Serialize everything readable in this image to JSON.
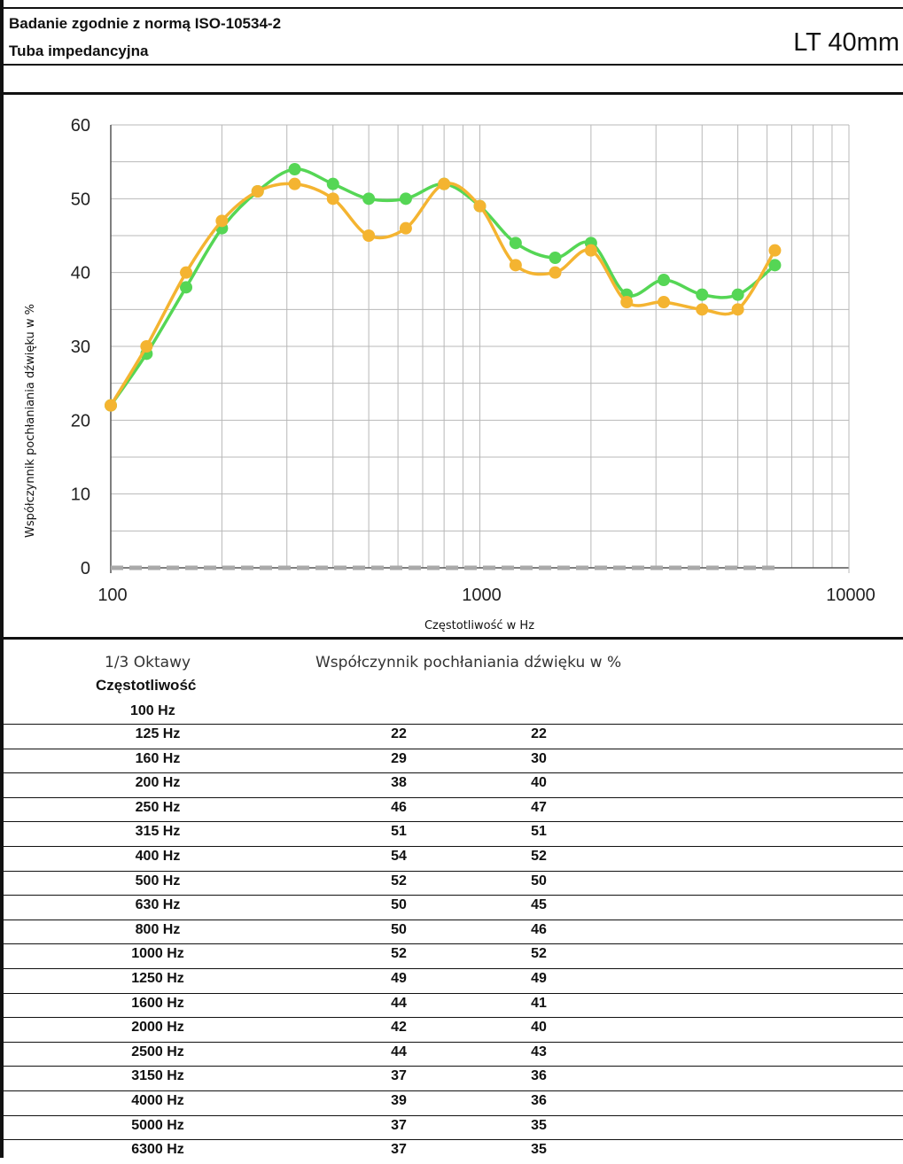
{
  "header": {
    "title_line_1": "Badanie zgodnie z normą ISO-10534-2",
    "title_line_2": "Tuba impedancyjna",
    "product": "LT 40mm"
  },
  "chart_data": {
    "type": "line",
    "xscale": "log",
    "xlabel": "Częstotliwość w Hz",
    "ylabel": "Współczynnik pochłaniania dźwięku w %",
    "xlim": [
      100,
      10000
    ],
    "ylim": [
      0,
      60
    ],
    "x_ticks": [
      "100",
      "1000",
      "10000"
    ],
    "y_ticks": [
      "0",
      "10",
      "20",
      "30",
      "40",
      "50",
      "60"
    ],
    "grid": true,
    "legend": "none",
    "x": [
      100,
      125,
      160,
      200,
      250,
      315,
      400,
      500,
      630,
      800,
      1000,
      1250,
      1600,
      2000,
      2500,
      3150,
      4000,
      5000,
      6300
    ],
    "series": [
      {
        "color": "#55d655",
        "values": [
          22,
          29,
          38,
          46,
          51,
          54,
          52,
          50,
          50,
          52,
          49,
          44,
          42,
          44,
          37,
          39,
          37,
          37,
          41
        ]
      },
      {
        "color": "#f4b431",
        "values": [
          22,
          30,
          40,
          47,
          51,
          52,
          50,
          45,
          46,
          52,
          49,
          41,
          40,
          43,
          36,
          36,
          35,
          35,
          43
        ]
      },
      {
        "color": "#a9a9a9",
        "style": "dashed",
        "values": [
          0,
          0,
          0,
          0,
          0,
          0,
          0,
          0,
          0,
          0,
          0,
          0,
          0,
          0,
          0,
          0,
          0,
          0,
          0
        ]
      }
    ]
  },
  "table": {
    "col_head_freq": "1/3 Oktawy",
    "col_head_coef": "Współczynnik pochłaniania dźwięku w %",
    "col_subhead": "Częstotliwość",
    "first_freq": "100 Hz",
    "rows": [
      {
        "freq": "125 Hz",
        "v1": "22",
        "v2": "22"
      },
      {
        "freq": "160 Hz",
        "v1": "29",
        "v2": "30"
      },
      {
        "freq": "200 Hz",
        "v1": "38",
        "v2": "40"
      },
      {
        "freq": "250 Hz",
        "v1": "46",
        "v2": "47"
      },
      {
        "freq": "315 Hz",
        "v1": "51",
        "v2": "51"
      },
      {
        "freq": "400 Hz",
        "v1": "54",
        "v2": "52"
      },
      {
        "freq": "500 Hz",
        "v1": "52",
        "v2": "50"
      },
      {
        "freq": "630 Hz",
        "v1": "50",
        "v2": "45"
      },
      {
        "freq": "800 Hz",
        "v1": "50",
        "v2": "46"
      },
      {
        "freq": "1000 Hz",
        "v1": "52",
        "v2": "52"
      },
      {
        "freq": "1250 Hz",
        "v1": "49",
        "v2": "49"
      },
      {
        "freq": "1600 Hz",
        "v1": "44",
        "v2": "41"
      },
      {
        "freq": "2000 Hz",
        "v1": "42",
        "v2": "40"
      },
      {
        "freq": "2500 Hz",
        "v1": "44",
        "v2": "43"
      },
      {
        "freq": "3150 Hz",
        "v1": "37",
        "v2": "36"
      },
      {
        "freq": "4000 Hz",
        "v1": "39",
        "v2": "36"
      },
      {
        "freq": "5000 Hz",
        "v1": "37",
        "v2": "35"
      },
      {
        "freq": "6300 Hz",
        "v1": "37",
        "v2": "35"
      }
    ]
  }
}
